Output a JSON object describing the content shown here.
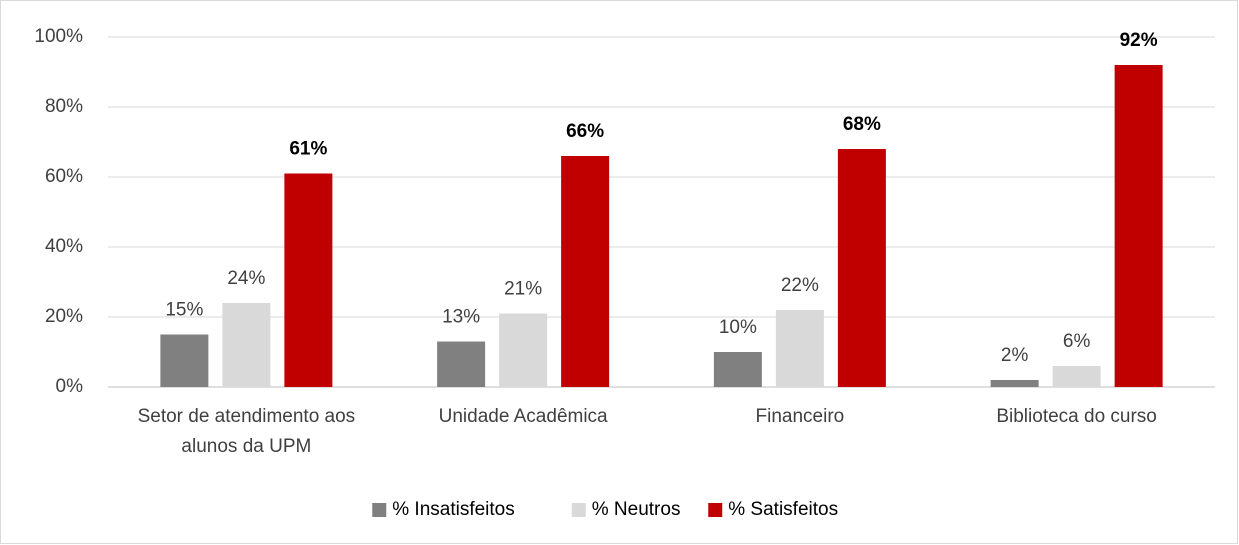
{
  "chart_data": {
    "type": "bar",
    "categories": [
      "Setor de atendimento aos alunos da UPM",
      "Unidade Acadêmica",
      "Financeiro",
      "Biblioteca do curso"
    ],
    "series": [
      {
        "name": "% Insatisfeitos",
        "color": "#808080",
        "values": [
          15,
          13,
          10,
          2
        ],
        "value_labels": [
          "15%",
          "13%",
          "10%",
          "2%"
        ]
      },
      {
        "name": "% Neutros",
        "color": "#d9d9d9",
        "values": [
          24,
          21,
          22,
          6
        ],
        "value_labels": [
          "24%",
          "21%",
          "22%",
          "6%"
        ]
      },
      {
        "name": "% Satisfeitos",
        "color": "#c00000",
        "values": [
          61,
          66,
          68,
          92
        ],
        "value_labels": [
          "61%",
          "66%",
          "68%",
          "92%"
        ]
      }
    ],
    "ylim": [
      0,
      100
    ],
    "yticks": [
      {
        "value": 0,
        "label": "0%"
      },
      {
        "value": 20,
        "label": "20%"
      },
      {
        "value": 40,
        "label": "40%"
      },
      {
        "value": 60,
        "label": "60%"
      },
      {
        "value": 80,
        "label": "80%"
      },
      {
        "value": 100,
        "label": "100%"
      }
    ],
    "grid": true,
    "legend": "bottom"
  }
}
